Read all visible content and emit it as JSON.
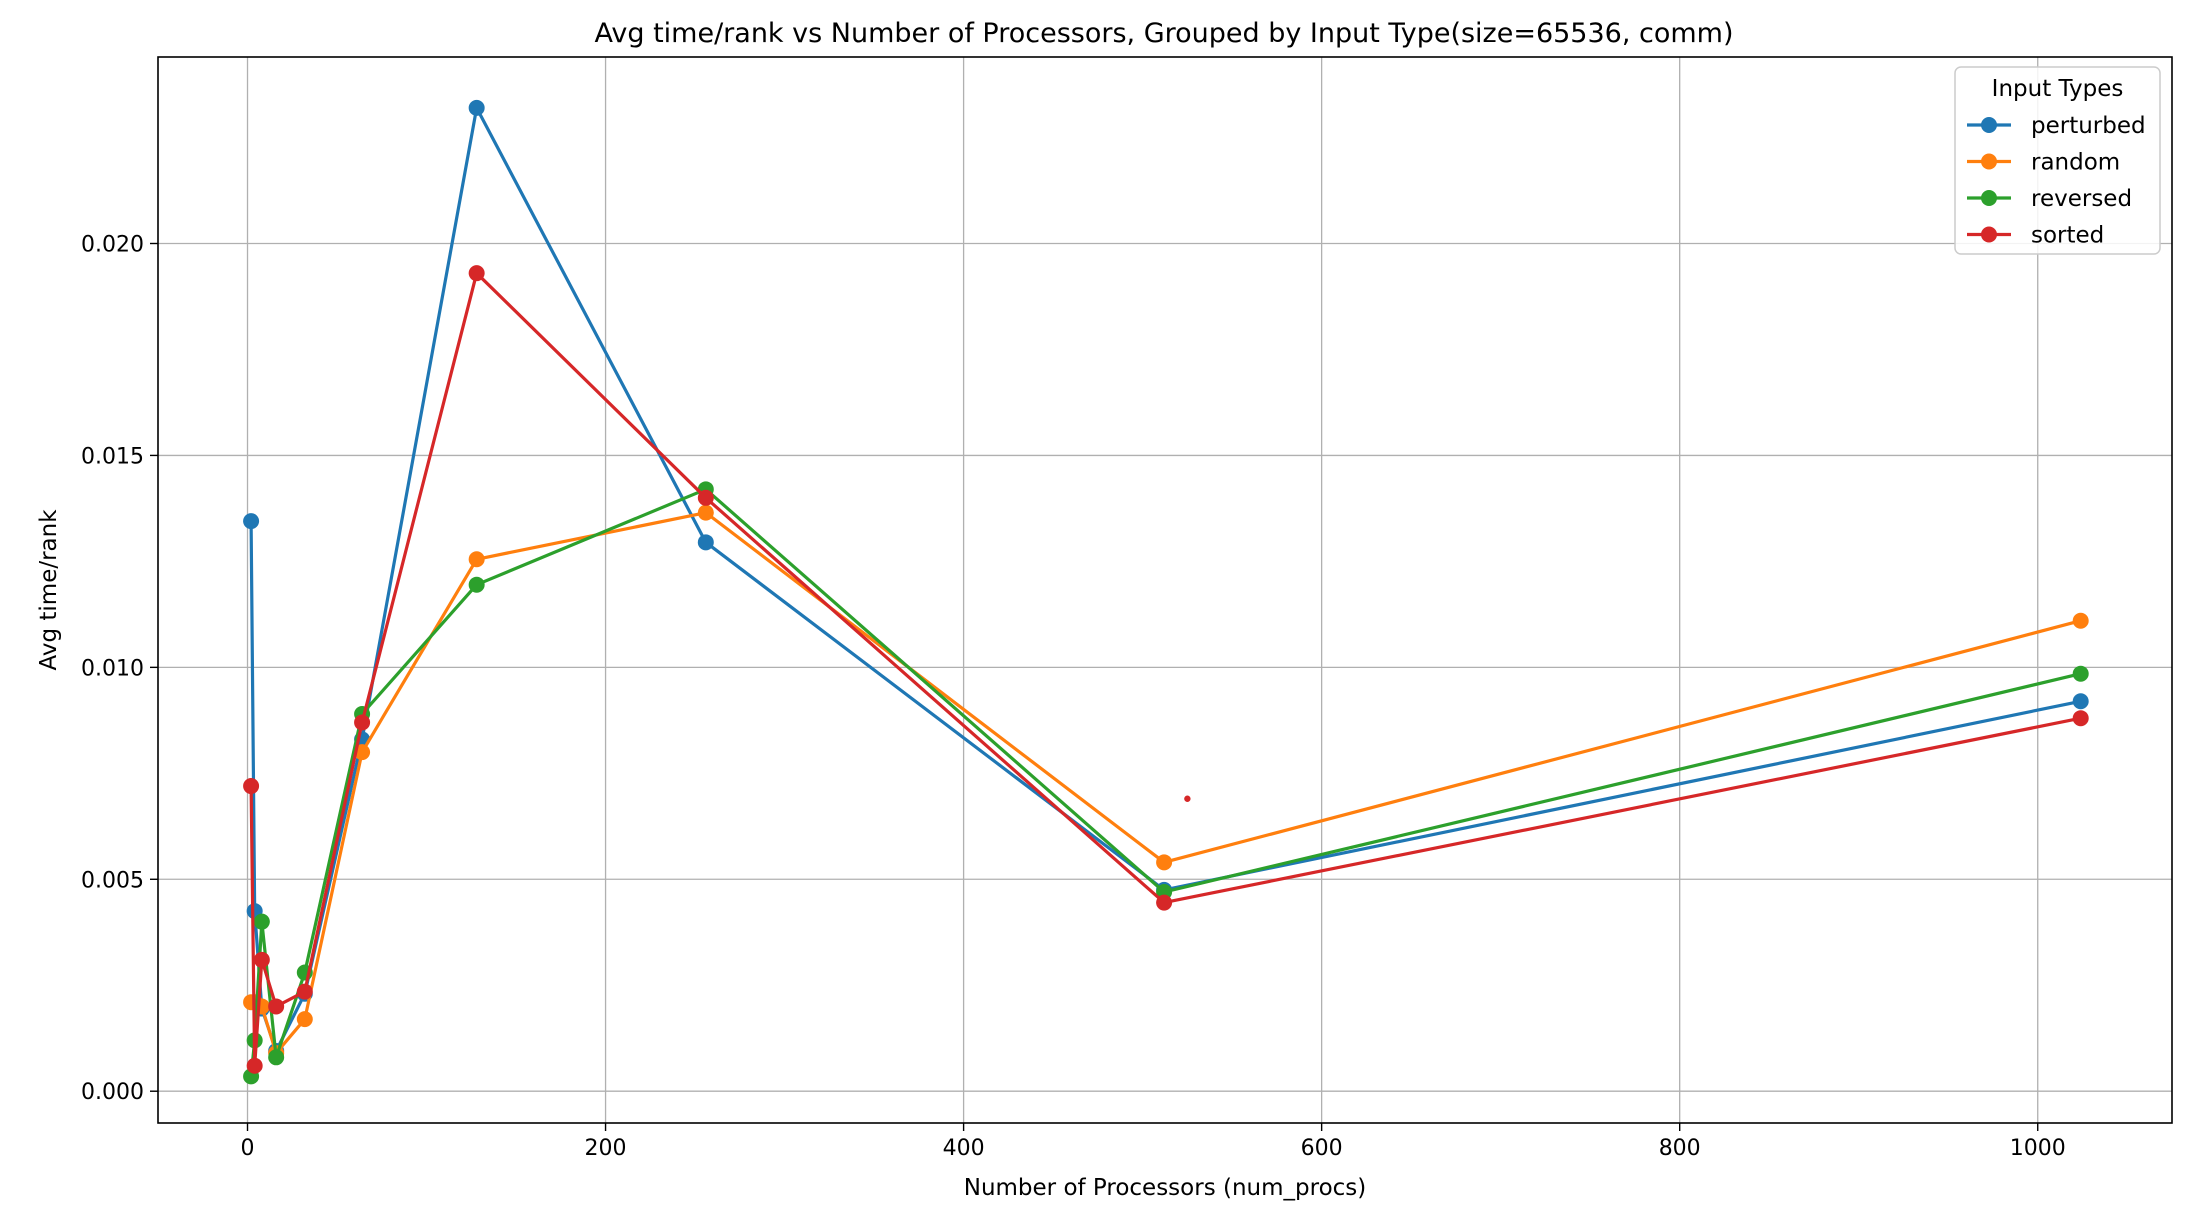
{
  "chart_data": {
    "type": "line",
    "title": "Avg time/rank vs Number of Processors, Grouped by Input Type(size=65536, comm)",
    "xlabel": "Number of Processors (num_procs)",
    "ylabel": "Avg time/rank",
    "xlim": [
      -50,
      1075
    ],
    "ylim": [
      -0.00075,
      0.0244
    ],
    "xticks": [
      0,
      200,
      400,
      600,
      800,
      1000
    ],
    "xtick_labels": [
      "0",
      "200",
      "400",
      "600",
      "800",
      "1000"
    ],
    "yticks": [
      0.0,
      0.005,
      0.01,
      0.015,
      0.02
    ],
    "ytick_labels": [
      "0.000",
      "0.005",
      "0.010",
      "0.015",
      "0.020"
    ],
    "grid": true,
    "legend": {
      "title": "Input Types",
      "placement": "top-right"
    },
    "x": [
      2,
      4,
      8,
      16,
      32,
      64,
      128,
      256,
      512,
      1024
    ],
    "series": [
      {
        "name": "perturbed",
        "color": "#1f77b4",
        "values": [
          0.01345,
          0.00425,
          0.00195,
          0.00095,
          0.0023,
          0.0083,
          0.0232,
          0.01295,
          0.00475,
          0.0092
        ]
      },
      {
        "name": "random",
        "color": "#ff7f0e",
        "values": [
          0.0021,
          0.0021,
          0.002,
          0.0009,
          0.0017,
          0.008,
          0.01255,
          0.01365,
          0.0054,
          0.0111
        ]
      },
      {
        "name": "reversed",
        "color": "#2ca02c",
        "values": [
          0.00035,
          0.0012,
          0.004,
          0.0008,
          0.0028,
          0.0089,
          0.01195,
          0.0142,
          0.0047,
          0.00985
        ]
      },
      {
        "name": "sorted",
        "color": "#d62728",
        "values": [
          0.0072,
          0.0006,
          0.0031,
          0.002,
          0.00235,
          0.0087,
          0.0193,
          0.014,
          0.00445,
          0.0088
        ]
      }
    ],
    "annotations": [
      {
        "type": "dot",
        "x": 525,
        "y": 0.0069,
        "color": "#d62728"
      }
    ]
  }
}
